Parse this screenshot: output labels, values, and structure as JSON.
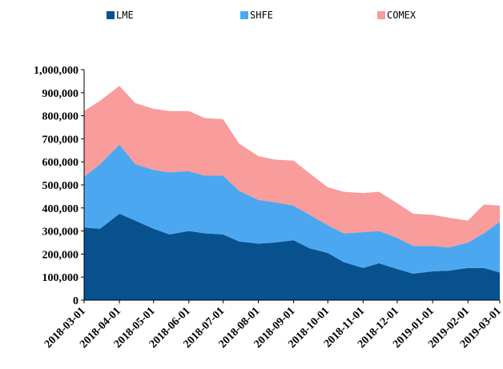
{
  "chart_data": {
    "type": "area",
    "stacked": true,
    "ylim": [
      0,
      1000000
    ],
    "yticks": [
      0,
      100000,
      200000,
      300000,
      400000,
      500000,
      600000,
      700000,
      800000,
      900000,
      1000000
    ],
    "ytick_labels": [
      "0",
      "100,000",
      "200,000",
      "300,000",
      "400,000",
      "500,000",
      "600,000",
      "700,000",
      "800,000",
      "900,000",
      "1,000,000"
    ],
    "xtick_labels": [
      "2018-03-01",
      "2018-04-01",
      "2018-05-01",
      "2018-06-01",
      "2018-07-01",
      "2018-08-01",
      "2018-09-01",
      "2018-10-01",
      "2018-11-01",
      "2018-12-01",
      "2019-01-01",
      "2019-02-01",
      "2019-03-01"
    ],
    "x": [
      "2018-03-01",
      "2018-03-15",
      "2018-04-01",
      "2018-04-15",
      "2018-05-01",
      "2018-05-15",
      "2018-06-01",
      "2018-06-15",
      "2018-07-01",
      "2018-07-15",
      "2018-08-01",
      "2018-08-15",
      "2018-09-01",
      "2018-09-15",
      "2018-10-01",
      "2018-10-15",
      "2018-11-01",
      "2018-11-15",
      "2018-12-01",
      "2018-12-15",
      "2019-01-01",
      "2019-01-15",
      "2019-02-01",
      "2019-02-15",
      "2019-03-01"
    ],
    "grid": false,
    "legend_position": "top",
    "series": [
      {
        "name": "LME",
        "color": "#08518f",
        "values": [
          315000,
          310000,
          375000,
          345000,
          310000,
          285000,
          300000,
          290000,
          285000,
          255000,
          245000,
          250000,
          260000,
          225000,
          205000,
          165000,
          140000,
          160000,
          135000,
          115000,
          125000,
          128000,
          140000,
          140000,
          120000
        ]
      },
      {
        "name": "SHFE",
        "color": "#4ba8f0",
        "values": [
          220000,
          280000,
          300000,
          245000,
          255000,
          270000,
          260000,
          250000,
          255000,
          220000,
          190000,
          175000,
          150000,
          145000,
          120000,
          125000,
          155000,
          140000,
          135000,
          120000,
          110000,
          100000,
          110000,
          150000,
          220000
        ]
      },
      {
        "name": "COMEX",
        "color": "#f89c9c",
        "values": [
          285000,
          275000,
          255000,
          265000,
          265000,
          265000,
          260000,
          250000,
          245000,
          205000,
          190000,
          185000,
          195000,
          180000,
          165000,
          180000,
          170000,
          170000,
          150000,
          140000,
          135000,
          130000,
          95000,
          125000,
          70000
        ]
      }
    ]
  }
}
